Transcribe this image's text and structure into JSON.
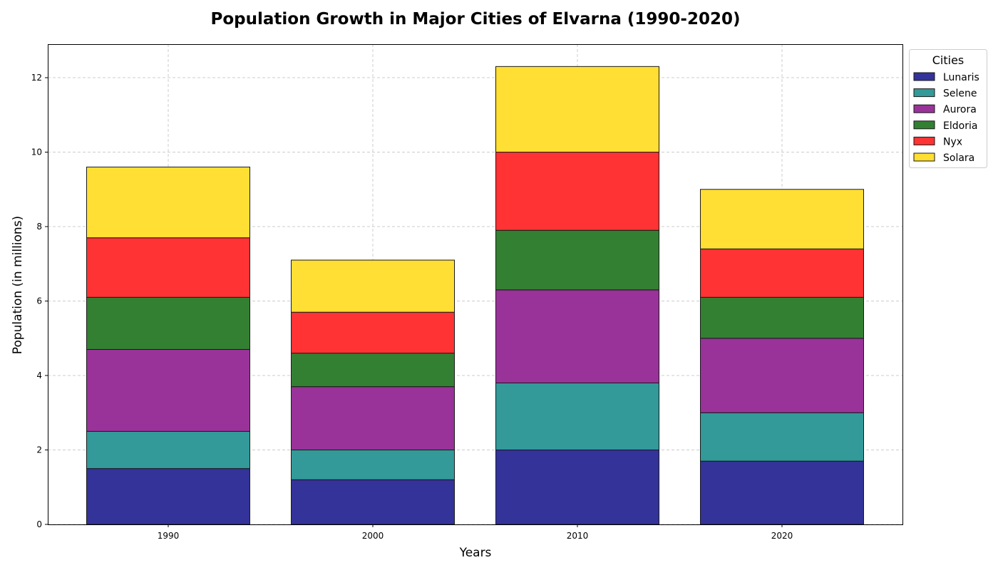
{
  "chart_data": {
    "type": "bar",
    "stacked": true,
    "title": "Population Growth in Major Cities of Elvarna (1990-2020)",
    "xlabel": "Years",
    "ylabel": "Population (in millions)",
    "categories": [
      "1990",
      "2000",
      "2010",
      "2020"
    ],
    "ylim": [
      0,
      12.9
    ],
    "yticks": [
      0,
      2,
      4,
      6,
      8,
      10,
      12
    ],
    "grid": true,
    "legend": {
      "title": "Cities",
      "position": "upper-right-outside"
    },
    "series": [
      {
        "name": "Lunaris",
        "color": "#333399",
        "values": [
          1.5,
          1.2,
          2.0,
          1.7
        ]
      },
      {
        "name": "Selene",
        "color": "#339999",
        "values": [
          1.0,
          0.8,
          1.8,
          1.3
        ]
      },
      {
        "name": "Aurora",
        "color": "#993399",
        "values": [
          2.2,
          1.7,
          2.5,
          2.0
        ]
      },
      {
        "name": "Eldoria",
        "color": "#338033",
        "values": [
          1.4,
          0.9,
          1.6,
          1.1
        ]
      },
      {
        "name": "Nyx",
        "color": "#ff3333",
        "values": [
          1.6,
          1.1,
          2.1,
          1.3
        ]
      },
      {
        "name": "Solara",
        "color": "#ffdf33",
        "values": [
          1.9,
          1.4,
          2.3,
          1.6
        ]
      }
    ]
  }
}
